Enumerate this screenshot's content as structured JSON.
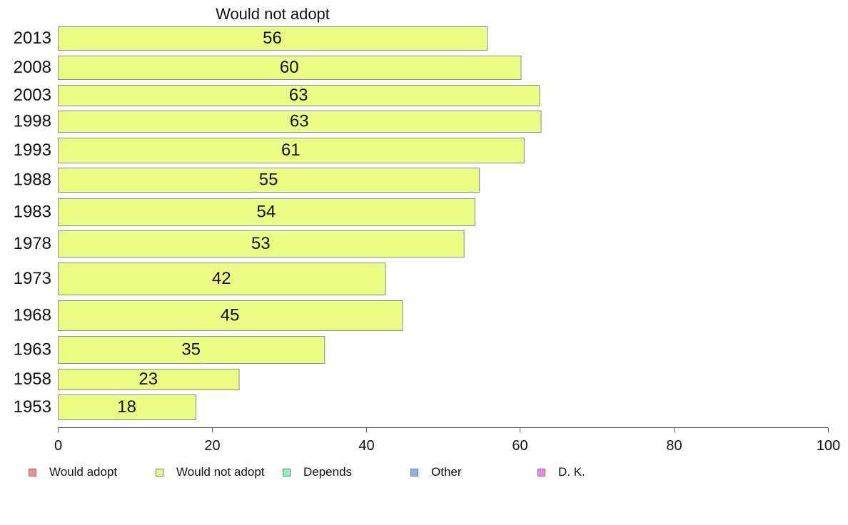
{
  "chart_data": {
    "type": "bar",
    "orientation": "horizontal",
    "title": "Would not adopt",
    "categories": [
      "2013",
      "2008",
      "2003",
      "1998",
      "1993",
      "1988",
      "1983",
      "1978",
      "1973",
      "1968",
      "1963",
      "1958",
      "1953"
    ],
    "series": [
      {
        "name": "Would not adopt",
        "color": "#ecfd86",
        "values": [
          56,
          60,
          63,
          63,
          61,
          55,
          54,
          53,
          42,
          45,
          35,
          23,
          18
        ],
        "plotted_values": [
          55.7,
          60.1,
          62.5,
          62.7,
          60.5,
          54.7,
          54.1,
          52.7,
          42.5,
          44.7,
          34.6,
          23.5,
          17.9
        ]
      }
    ],
    "xlim": [
      0,
      100
    ],
    "xticks": [
      0,
      20,
      40,
      60,
      80,
      100
    ],
    "grid": false,
    "legend_position": "bottom"
  },
  "legend": {
    "items": [
      {
        "label": "Would adopt",
        "color": "#f68b8b"
      },
      {
        "label": "Would not adopt",
        "color": "#ecfd86"
      },
      {
        "label": "Depends",
        "color": "#86fdb6"
      },
      {
        "label": "Other",
        "color": "#86b6f6"
      },
      {
        "label": "D. K.",
        "color": "#ec86f6"
      }
    ]
  }
}
